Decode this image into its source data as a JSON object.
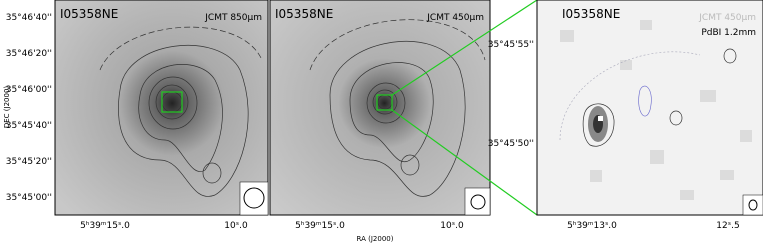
{
  "panels": [
    {
      "source": "I05358NE",
      "labels": [
        "JCMT 850μm"
      ]
    },
    {
      "source": "I05358NE",
      "labels": [
        "JCMT 450μm"
      ]
    },
    {
      "source": "I05358NE",
      "labels": [
        "JCMT 450μm",
        "PdBI 1.2mm"
      ]
    }
  ],
  "dec_axis": {
    "title": "DEC (J2000)",
    "ticks": [
      "35°46'40''",
      "35°46'20''",
      "35°46'00''",
      "35°45'40''",
      "35°45'20''",
      "35°45'00''"
    ]
  },
  "ra_axis": {
    "title": "RA (J2000)",
    "panel1_ticks": [
      "5ʰ39ᵐ15ˢ.0",
      "10ˢ.0"
    ],
    "panel2_ticks": [
      "5ʰ39ᵐ15ˢ.0",
      "10ˢ.0"
    ]
  },
  "zoom_axes": {
    "dec_ticks": [
      "35°45'55''",
      "35°45'50''"
    ],
    "ra_ticks": [
      "5ʰ39ᵐ13ˢ.0",
      "12ˢ.5"
    ]
  }
}
